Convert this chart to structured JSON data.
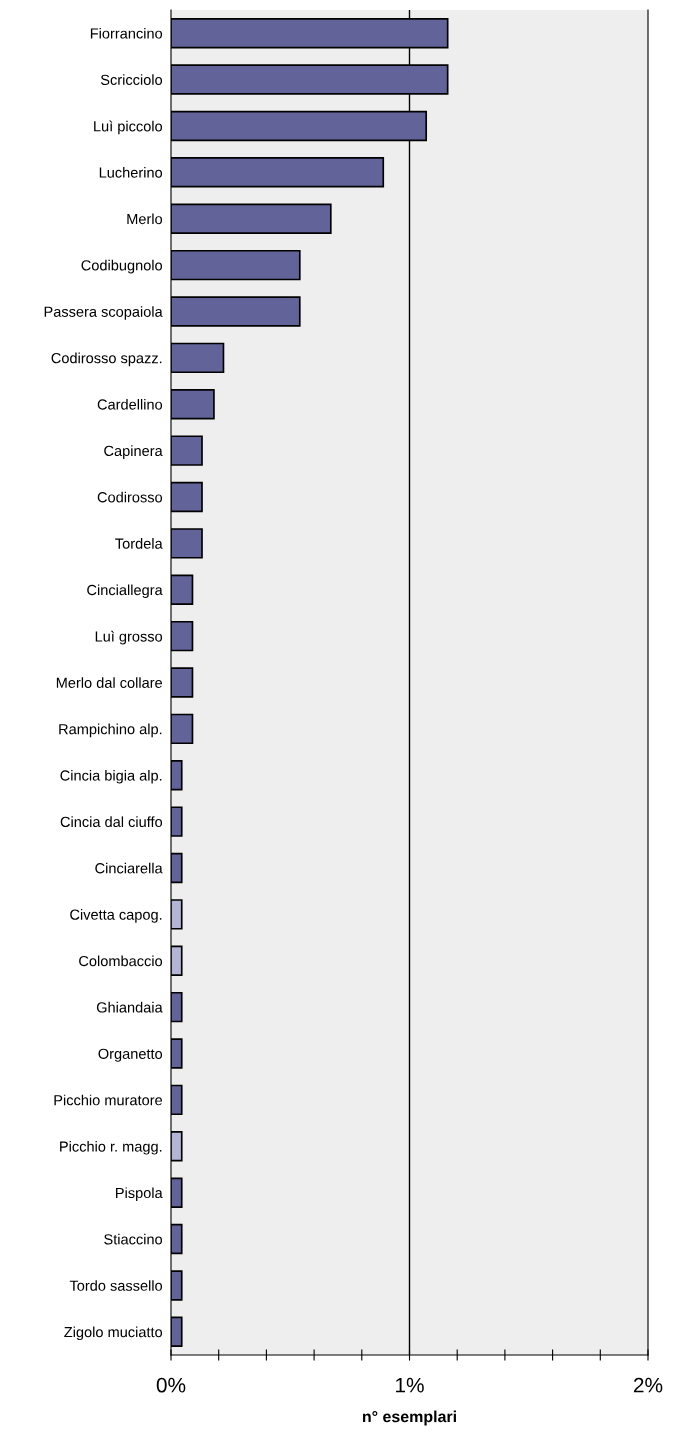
{
  "chart_data": {
    "type": "bar",
    "orientation": "horizontal",
    "xlabel": "n° esemplari",
    "categories": [
      "Fiorrancino",
      "Scricciolo",
      "Luì piccolo",
      "Lucherino",
      "Merlo",
      "Codibugnolo",
      "Passera scopaiola",
      "Codirosso spazz.",
      "Cardellino",
      "Capinera",
      "Codirosso",
      "Tordela",
      "Cinciallegra",
      "Luì grosso",
      "Merlo dal collare",
      "Rampichino alp.",
      "Cincia bigia alp.",
      "Cincia dal ciuffo",
      "Cinciarella",
      "Civetta capog.",
      "Colombaccio",
      "Ghiandaia",
      "Organetto",
      "Picchio muratore",
      "Picchio r. magg.",
      "Pispola",
      "Stiaccino",
      "Tordo sassello",
      "Zigolo muciatto"
    ],
    "values": [
      1.16,
      1.16,
      1.07,
      0.89,
      0.67,
      0.54,
      0.54,
      0.22,
      0.18,
      0.13,
      0.13,
      0.13,
      0.09,
      0.09,
      0.09,
      0.09,
      0.045,
      0.045,
      0.045,
      0.045,
      0.045,
      0.045,
      0.045,
      0.045,
      0.045,
      0.045,
      0.045,
      0.045,
      0.045
    ],
    "colors": [
      "#626399",
      "#626399",
      "#626399",
      "#626399",
      "#626399",
      "#626399",
      "#626399",
      "#626399",
      "#626399",
      "#626399",
      "#626399",
      "#626399",
      "#626399",
      "#626399",
      "#626399",
      "#626399",
      "#626399",
      "#626399",
      "#626399",
      "#b4b5d6",
      "#b4b5d6",
      "#626399",
      "#626399",
      "#626399",
      "#b4b5d6",
      "#626399",
      "#626399",
      "#626399",
      "#626399"
    ],
    "xlim": [
      0,
      2
    ],
    "xticks": [
      {
        "value": 0,
        "label": "0%"
      },
      {
        "value": 0.2,
        "label": null
      },
      {
        "value": 0.4,
        "label": null
      },
      {
        "value": 0.6,
        "label": null
      },
      {
        "value": 0.8,
        "label": null
      },
      {
        "value": 1,
        "label": "1%"
      },
      {
        "value": 1.2,
        "label": null
      },
      {
        "value": 1.4,
        "label": null
      },
      {
        "value": 1.6,
        "label": null
      },
      {
        "value": 1.8,
        "label": null
      },
      {
        "value": 2,
        "label": "2%"
      }
    ],
    "ref_lines": [
      {
        "axis": "x",
        "value": 1,
        "color": "#000000"
      }
    ],
    "grid": false
  }
}
